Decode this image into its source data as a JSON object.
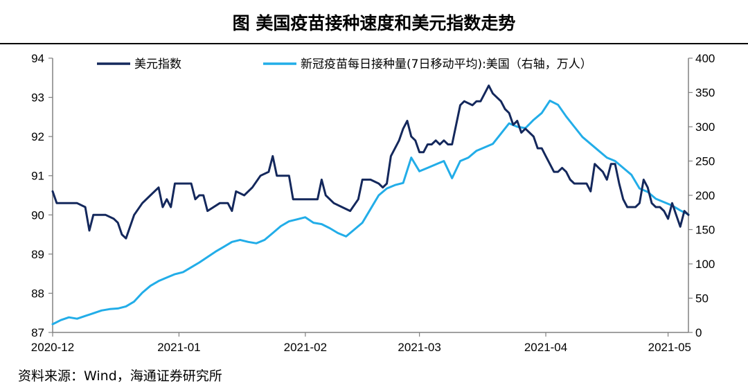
{
  "title": "图  美国疫苗接种速度和美元指数走势",
  "source": "资料来源：Wind，海通证券研究所",
  "chart_data": {
    "type": "line",
    "x_tick_labels": [
      "2020-12",
      "2021-01",
      "2021-02",
      "2021-03",
      "2021-04",
      "2021-05"
    ],
    "x_tick_dates": [
      "2020-12-01",
      "2021-01-01",
      "2021-02-01",
      "2021-03-01",
      "2021-04-01",
      "2021-05-01"
    ],
    "x_range": [
      "2020-12-01",
      "2021-05-06"
    ],
    "y_left": {
      "min": 87,
      "max": 94,
      "ticks": [
        94,
        93,
        92,
        91,
        90,
        89,
        88,
        87
      ]
    },
    "y_right": {
      "min": 0,
      "max": 400,
      "ticks": [
        400,
        350,
        300,
        250,
        200,
        150,
        100,
        50,
        0
      ]
    },
    "grid": false,
    "legend_position": "top",
    "series": [
      {
        "name": "美元指数",
        "axis": "left",
        "color": "#14285c",
        "points": [
          [
            "2020-12-01",
            90.6
          ],
          [
            "2020-12-02",
            90.3
          ],
          [
            "2020-12-04",
            90.3
          ],
          [
            "2020-12-07",
            90.3
          ],
          [
            "2020-12-09",
            90.2
          ],
          [
            "2020-12-10",
            89.6
          ],
          [
            "2020-12-11",
            90.0
          ],
          [
            "2020-12-14",
            90.0
          ],
          [
            "2020-12-16",
            89.9
          ],
          [
            "2020-12-17",
            89.8
          ],
          [
            "2020-12-18",
            89.5
          ],
          [
            "2020-12-19",
            89.4
          ],
          [
            "2020-12-21",
            90.0
          ],
          [
            "2020-12-23",
            90.3
          ],
          [
            "2020-12-25",
            90.5
          ],
          [
            "2020-12-27",
            90.7
          ],
          [
            "2020-12-28",
            90.2
          ],
          [
            "2020-12-29",
            90.4
          ],
          [
            "2020-12-30",
            90.2
          ],
          [
            "2020-12-31",
            90.8
          ],
          [
            "2021-01-01",
            90.8
          ],
          [
            "2021-01-04",
            90.8
          ],
          [
            "2021-01-05",
            90.4
          ],
          [
            "2021-01-06",
            90.5
          ],
          [
            "2021-01-07",
            90.5
          ],
          [
            "2021-01-08",
            90.1
          ],
          [
            "2021-01-11",
            90.3
          ],
          [
            "2021-01-13",
            90.3
          ],
          [
            "2021-01-14",
            90.1
          ],
          [
            "2021-01-15",
            90.6
          ],
          [
            "2021-01-17",
            90.5
          ],
          [
            "2021-01-19",
            90.7
          ],
          [
            "2021-01-21",
            91.0
          ],
          [
            "2021-01-23",
            91.1
          ],
          [
            "2021-01-24",
            91.5
          ],
          [
            "2021-01-25",
            91.0
          ],
          [
            "2021-01-26",
            91.0
          ],
          [
            "2021-01-28",
            91.0
          ],
          [
            "2021-01-29",
            90.4
          ],
          [
            "2021-01-31",
            90.4
          ],
          [
            "2021-02-01",
            90.4
          ],
          [
            "2021-02-02",
            90.4
          ],
          [
            "2021-02-04",
            90.4
          ],
          [
            "2021-02-05",
            90.9
          ],
          [
            "2021-02-06",
            90.5
          ],
          [
            "2021-02-08",
            90.3
          ],
          [
            "2021-02-10",
            90.2
          ],
          [
            "2021-02-12",
            90.1
          ],
          [
            "2021-02-14",
            90.4
          ],
          [
            "2021-02-15",
            90.9
          ],
          [
            "2021-02-17",
            90.9
          ],
          [
            "2021-02-19",
            90.8
          ],
          [
            "2021-02-20",
            90.7
          ],
          [
            "2021-02-21",
            90.8
          ],
          [
            "2021-02-22",
            91.5
          ],
          [
            "2021-02-24",
            91.9
          ],
          [
            "2021-02-25",
            92.2
          ],
          [
            "2021-02-26",
            92.4
          ],
          [
            "2021-02-27",
            92.0
          ],
          [
            "2021-02-28",
            91.9
          ],
          [
            "2021-03-01",
            91.6
          ],
          [
            "2021-03-02",
            91.6
          ],
          [
            "2021-03-03",
            91.8
          ],
          [
            "2021-03-04",
            91.8
          ],
          [
            "2021-03-05",
            91.9
          ],
          [
            "2021-03-06",
            91.8
          ],
          [
            "2021-03-07",
            91.9
          ],
          [
            "2021-03-08",
            91.8
          ],
          [
            "2021-03-09",
            91.8
          ],
          [
            "2021-03-10",
            92.3
          ],
          [
            "2021-03-11",
            92.8
          ],
          [
            "2021-03-12",
            92.9
          ],
          [
            "2021-03-14",
            92.8
          ],
          [
            "2021-03-15",
            92.9
          ],
          [
            "2021-03-16",
            92.9
          ],
          [
            "2021-03-17",
            93.1
          ],
          [
            "2021-03-18",
            93.3
          ],
          [
            "2021-03-19",
            93.1
          ],
          [
            "2021-03-20",
            93.0
          ],
          [
            "2021-03-21",
            92.9
          ],
          [
            "2021-03-22",
            92.7
          ],
          [
            "2021-03-23",
            92.6
          ],
          [
            "2021-03-24",
            92.3
          ],
          [
            "2021-03-25",
            92.4
          ],
          [
            "2021-03-26",
            92.1
          ],
          [
            "2021-03-27",
            92.2
          ],
          [
            "2021-03-28",
            92.1
          ],
          [
            "2021-03-29",
            92.0
          ],
          [
            "2021-03-30",
            91.7
          ],
          [
            "2021-03-31",
            91.7
          ],
          [
            "2021-04-01",
            91.5
          ],
          [
            "2021-04-02",
            91.3
          ],
          [
            "2021-04-03",
            91.1
          ],
          [
            "2021-04-04",
            91.1
          ],
          [
            "2021-04-05",
            91.2
          ],
          [
            "2021-04-06",
            91.1
          ],
          [
            "2021-04-07",
            90.9
          ],
          [
            "2021-04-08",
            90.8
          ],
          [
            "2021-04-10",
            90.8
          ],
          [
            "2021-04-11",
            90.8
          ],
          [
            "2021-04-12",
            90.6
          ],
          [
            "2021-04-13",
            91.3
          ],
          [
            "2021-04-14",
            91.2
          ],
          [
            "2021-04-15",
            91.1
          ],
          [
            "2021-04-16",
            90.9
          ],
          [
            "2021-04-17",
            91.3
          ],
          [
            "2021-04-18",
            91.3
          ],
          [
            "2021-04-19",
            90.8
          ],
          [
            "2021-04-20",
            90.4
          ],
          [
            "2021-04-21",
            90.2
          ],
          [
            "2021-04-22",
            90.2
          ],
          [
            "2021-04-23",
            90.2
          ],
          [
            "2021-04-24",
            90.3
          ],
          [
            "2021-04-25",
            90.9
          ],
          [
            "2021-04-26",
            90.7
          ],
          [
            "2021-04-27",
            90.3
          ],
          [
            "2021-04-28",
            90.2
          ],
          [
            "2021-04-29",
            90.2
          ],
          [
            "2021-04-30",
            90.1
          ],
          [
            "2021-05-01",
            89.9
          ],
          [
            "2021-05-02",
            90.3
          ],
          [
            "2021-05-03",
            90.0
          ],
          [
            "2021-05-04",
            89.7
          ],
          [
            "2021-05-05",
            90.1
          ],
          [
            "2021-05-06",
            90.0
          ]
        ]
      },
      {
        "name": "新冠疫苗每日接种量(7日移动平均):美国（右轴，万人）",
        "axis": "right",
        "color": "#22ade8",
        "points": [
          [
            "2020-12-01",
            12
          ],
          [
            "2020-12-03",
            18
          ],
          [
            "2020-12-05",
            22
          ],
          [
            "2020-12-07",
            20
          ],
          [
            "2020-12-09",
            24
          ],
          [
            "2020-12-11",
            28
          ],
          [
            "2020-12-13",
            32
          ],
          [
            "2020-12-15",
            34
          ],
          [
            "2020-12-17",
            35
          ],
          [
            "2020-12-19",
            38
          ],
          [
            "2020-12-21",
            45
          ],
          [
            "2020-12-23",
            58
          ],
          [
            "2020-12-25",
            68
          ],
          [
            "2020-12-27",
            75
          ],
          [
            "2020-12-29",
            80
          ],
          [
            "2020-12-31",
            85
          ],
          [
            "2021-01-02",
            88
          ],
          [
            "2021-01-04",
            95
          ],
          [
            "2021-01-06",
            102
          ],
          [
            "2021-01-08",
            110
          ],
          [
            "2021-01-10",
            118
          ],
          [
            "2021-01-12",
            125
          ],
          [
            "2021-01-14",
            132
          ],
          [
            "2021-01-16",
            135
          ],
          [
            "2021-01-18",
            132
          ],
          [
            "2021-01-20",
            130
          ],
          [
            "2021-01-22",
            135
          ],
          [
            "2021-01-24",
            145
          ],
          [
            "2021-01-26",
            155
          ],
          [
            "2021-01-28",
            162
          ],
          [
            "2021-01-30",
            165
          ],
          [
            "2021-02-01",
            168
          ],
          [
            "2021-02-03",
            160
          ],
          [
            "2021-02-05",
            158
          ],
          [
            "2021-02-07",
            152
          ],
          [
            "2021-02-09",
            145
          ],
          [
            "2021-02-11",
            140
          ],
          [
            "2021-02-13",
            150
          ],
          [
            "2021-02-15",
            160
          ],
          [
            "2021-02-17",
            180
          ],
          [
            "2021-02-19",
            200
          ],
          [
            "2021-02-21",
            210
          ],
          [
            "2021-02-23",
            215
          ],
          [
            "2021-02-25",
            218
          ],
          [
            "2021-02-27",
            255
          ],
          [
            "2021-03-01",
            235
          ],
          [
            "2021-03-03",
            240
          ],
          [
            "2021-03-05",
            245
          ],
          [
            "2021-03-07",
            250
          ],
          [
            "2021-03-09",
            225
          ],
          [
            "2021-03-11",
            250
          ],
          [
            "2021-03-13",
            255
          ],
          [
            "2021-03-15",
            265
          ],
          [
            "2021-03-17",
            270
          ],
          [
            "2021-03-19",
            275
          ],
          [
            "2021-03-21",
            290
          ],
          [
            "2021-03-23",
            305
          ],
          [
            "2021-03-25",
            300
          ],
          [
            "2021-03-27",
            298
          ],
          [
            "2021-03-29",
            310
          ],
          [
            "2021-03-31",
            320
          ],
          [
            "2021-04-02",
            338
          ],
          [
            "2021-04-04",
            332
          ],
          [
            "2021-04-06",
            315
          ],
          [
            "2021-04-08",
            300
          ],
          [
            "2021-04-10",
            285
          ],
          [
            "2021-04-12",
            275
          ],
          [
            "2021-04-14",
            265
          ],
          [
            "2021-04-16",
            255
          ],
          [
            "2021-04-18",
            250
          ],
          [
            "2021-04-20",
            240
          ],
          [
            "2021-04-22",
            230
          ],
          [
            "2021-04-24",
            210
          ],
          [
            "2021-04-26",
            205
          ],
          [
            "2021-04-28",
            195
          ],
          [
            "2021-04-30",
            190
          ],
          [
            "2021-05-02",
            185
          ],
          [
            "2021-05-04",
            178
          ],
          [
            "2021-05-06",
            172
          ]
        ]
      }
    ]
  }
}
